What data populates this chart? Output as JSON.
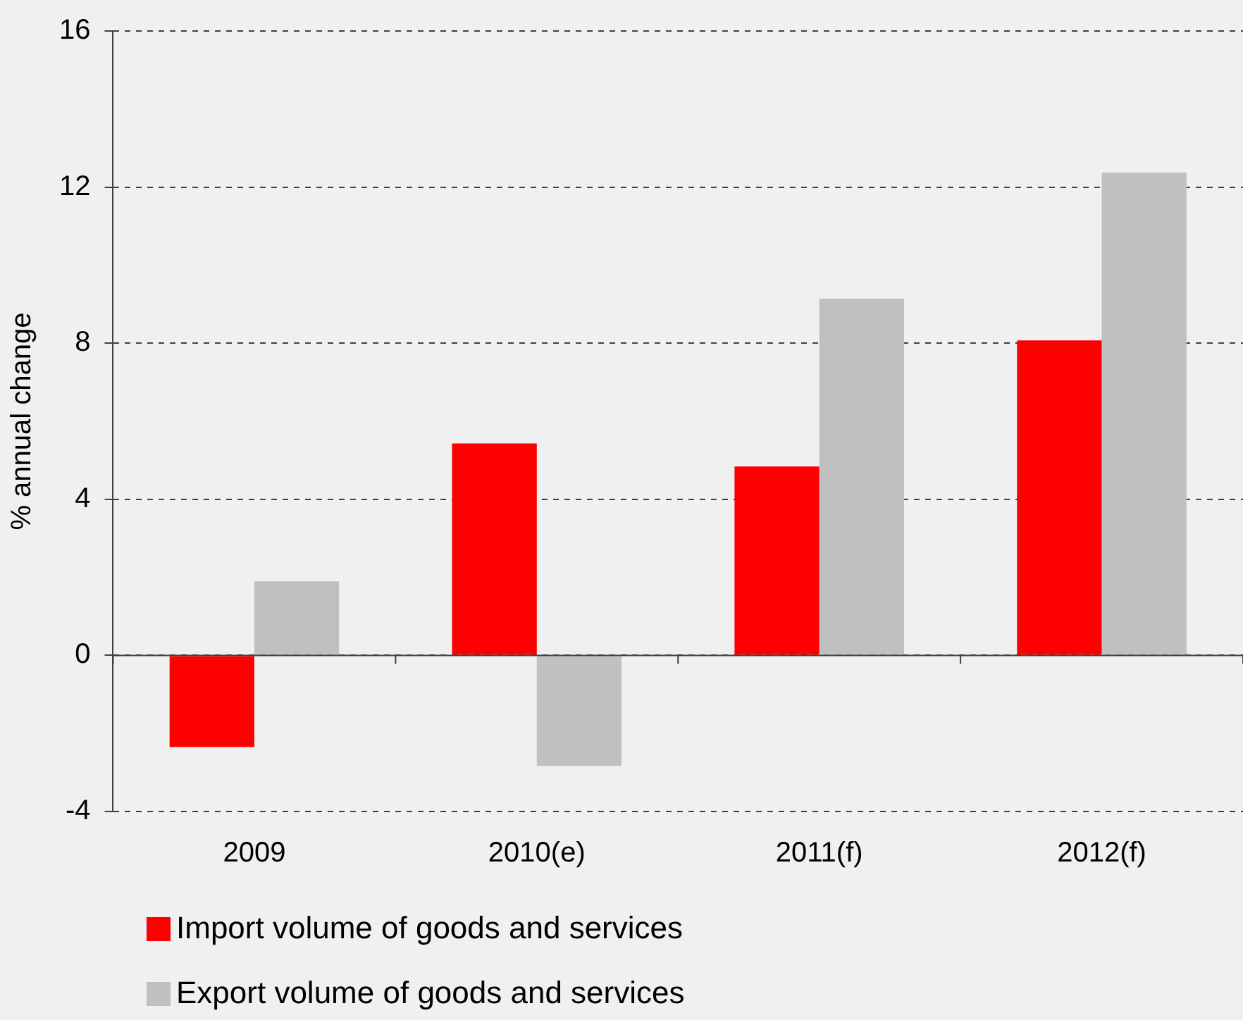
{
  "chart_data": {
    "type": "bar",
    "ylabel": "% annual change",
    "categories": [
      "2009",
      "2010(e)",
      "2011(f)",
      "2012(f)"
    ],
    "series": [
      {
        "name": "Import volume of goods and services",
        "color": "#ff0000",
        "values": [
          -2.35,
          5.43,
          4.84,
          8.07
        ]
      },
      {
        "name": "Export volume of goods and services",
        "color": "#c0c0c0",
        "values": [
          1.9,
          -2.83,
          9.14,
          12.37
        ]
      }
    ],
    "ylim": [
      -4,
      16
    ],
    "yticks": [
      -4,
      0,
      4,
      8,
      12,
      16
    ],
    "grid": "y",
    "legend": "bottom"
  }
}
